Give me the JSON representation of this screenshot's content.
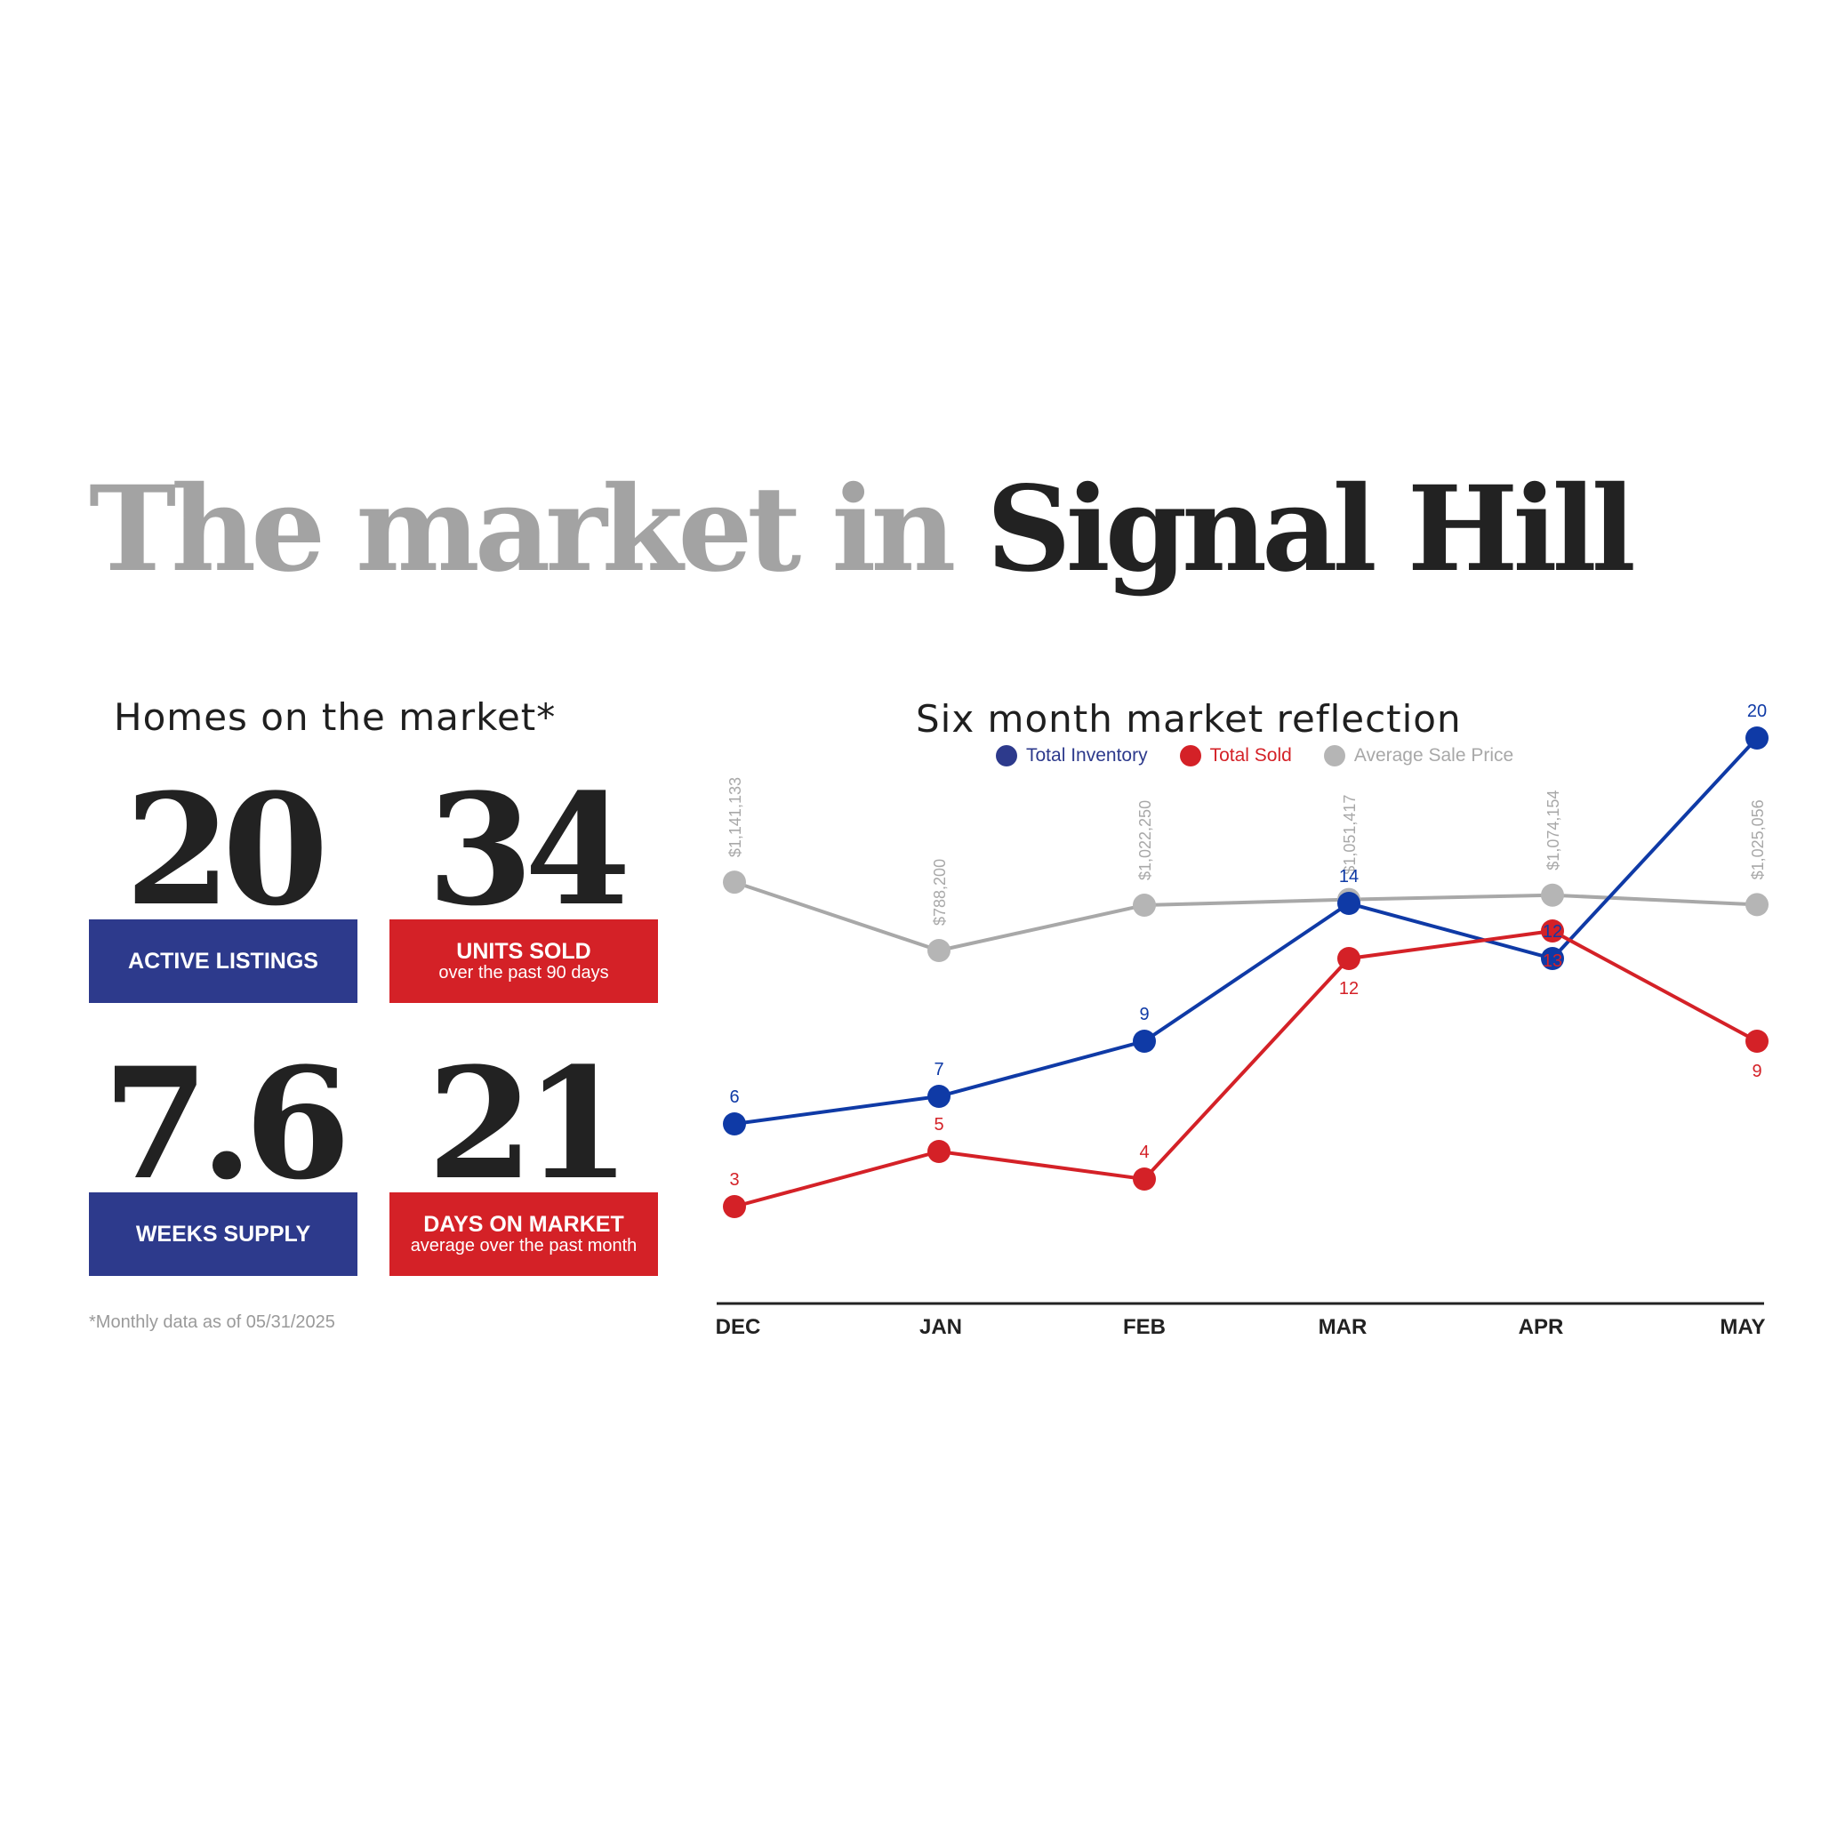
{
  "title": {
    "light": "The market in",
    "dark": "Signal Hill"
  },
  "homes_heading": "Homes on the market*",
  "stats": [
    {
      "value": "20",
      "label": "ACTIVE LISTINGS",
      "sub": ""
    },
    {
      "value": "34",
      "label": "UNITS SOLD",
      "sub": "over the past 90 days"
    },
    {
      "value": "7.6",
      "label": "WEEKS SUPPLY",
      "sub": ""
    },
    {
      "value": "21",
      "label": "DAYS ON MARKET",
      "sub": "average over the past month"
    }
  ],
  "footnote": "*Monthly data as of 05/31/2025",
  "colors": {
    "blue_box": "#2d3a8c",
    "red_box": "#d42127",
    "inventory": "#0f3aa6",
    "sold": "#d42127",
    "price": "#a8a8a8"
  },
  "chart_data": {
    "type": "line",
    "title": "Six month market reflection",
    "categories": [
      "DEC",
      "JAN",
      "FEB",
      "MAR",
      "APR",
      "MAY"
    ],
    "legend_position": "top-center",
    "grid": false,
    "series": [
      {
        "name": "Total Inventory",
        "values": [
          6,
          7,
          9,
          14,
          12,
          20
        ],
        "labels": [
          "6",
          "7",
          "9",
          "14",
          "12",
          "20"
        ]
      },
      {
        "name": "Total Sold",
        "values": [
          3,
          5,
          4,
          12,
          13,
          9
        ],
        "labels": [
          "3",
          "5",
          "4",
          "12",
          "13",
          "9"
        ]
      },
      {
        "name": "Average Sale Price",
        "values": [
          1141133,
          788200,
          1022250,
          1051417,
          1074154,
          1025056
        ],
        "labels": [
          "$1,141,133",
          "$788,200",
          "$1,022,250",
          "$1,051,417",
          "$1,074,154",
          "$1,025,056"
        ]
      }
    ]
  }
}
